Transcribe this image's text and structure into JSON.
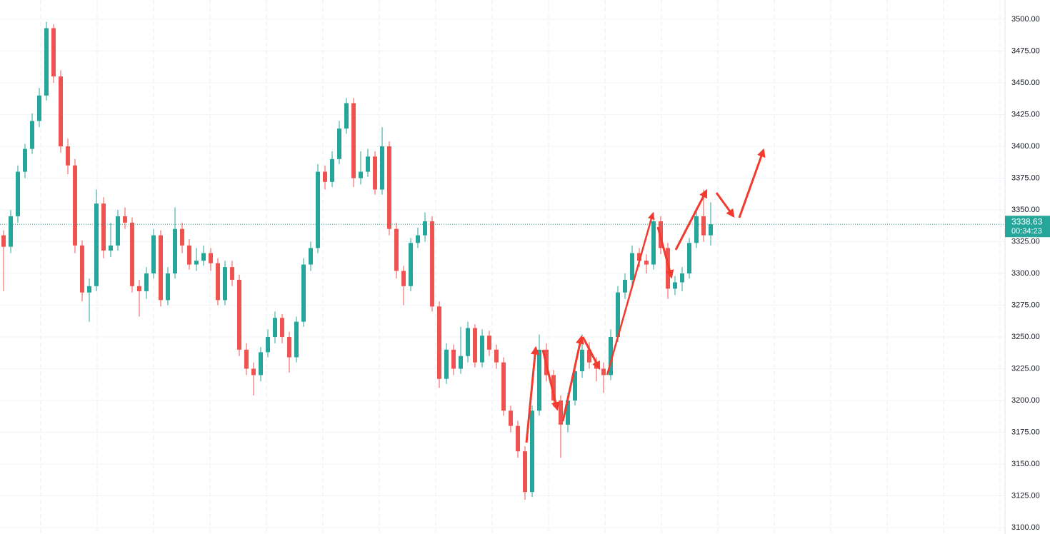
{
  "chart_data": {
    "type": "candlestick",
    "series": [
      {
        "up_color": "#26a69a",
        "down_color": "#ef5350",
        "open": [
          3330,
          3321,
          3345,
          3380,
          3398,
          3420,
          3440,
          3493,
          3455,
          3400,
          3385,
          3322,
          3285,
          3290,
          3355,
          3318,
          3322,
          3345,
          3340,
          3290,
          3286,
          3300,
          3330,
          3279,
          3300,
          3335,
          3322,
          3307,
          3310,
          3316,
          3308,
          3279,
          3305,
          3295,
          3240,
          3225,
          3220,
          3238,
          3250,
          3265,
          3250,
          3234,
          3262,
          3307,
          3320,
          3380,
          3372,
          3390,
          3414,
          3434,
          3375,
          3380,
          3392,
          3366,
          3400,
          3335,
          3302,
          3290,
          3324,
          3330,
          3341,
          3274,
          3217,
          3240,
          3225,
          3235,
          3257,
          3230,
          3251,
          3240,
          3230,
          3192,
          3180,
          3160,
          3128,
          3192,
          3240,
          3220,
          3200,
          3181,
          3200,
          3223,
          3240,
          3230,
          3225,
          3220,
          3250,
          3285,
          3295,
          3316,
          3310,
          3307,
          3341,
          3320,
          3288,
          3293,
          3300,
          3324,
          3345,
          3330
        ],
        "high": [
          3334,
          3350,
          3385,
          3402,
          3426,
          3446,
          3498,
          3496,
          3460,
          3406,
          3390,
          3326,
          3296,
          3366,
          3360,
          3340,
          3350,
          3352,
          3344,
          3295,
          3305,
          3335,
          3334,
          3305,
          3352,
          3340,
          3327,
          3320,
          3322,
          3320,
          3312,
          3310,
          3310,
          3299,
          3245,
          3230,
          3242,
          3256,
          3270,
          3268,
          3254,
          3266,
          3312,
          3325,
          3386,
          3385,
          3396,
          3420,
          3438,
          3438,
          3396,
          3398,
          3396,
          3415,
          3404,
          3340,
          3306,
          3328,
          3336,
          3348,
          3345,
          3278,
          3245,
          3244,
          3258,
          3262,
          3260,
          3256,
          3255,
          3244,
          3234,
          3196,
          3184,
          3164,
          3196,
          3252,
          3245,
          3224,
          3204,
          3206,
          3228,
          3252,
          3246,
          3234,
          3230,
          3256,
          3290,
          3300,
          3322,
          3320,
          3315,
          3348,
          3345,
          3324,
          3298,
          3305,
          3328,
          3350,
          3366,
          3356
        ],
        "low": [
          3286,
          3316,
          3340,
          3375,
          3394,
          3415,
          3436,
          3450,
          3395,
          3378,
          3316,
          3278,
          3262,
          3286,
          3312,
          3313,
          3318,
          3335,
          3285,
          3266,
          3280,
          3296,
          3274,
          3275,
          3296,
          3316,
          3303,
          3302,
          3306,
          3302,
          3275,
          3275,
          3290,
          3235,
          3220,
          3204,
          3215,
          3234,
          3245,
          3245,
          3222,
          3230,
          3258,
          3302,
          3316,
          3366,
          3368,
          3386,
          3410,
          3368,
          3370,
          3376,
          3362,
          3362,
          3330,
          3296,
          3275,
          3286,
          3320,
          3325,
          3270,
          3210,
          3213,
          3220,
          3221,
          3230,
          3226,
          3226,
          3235,
          3225,
          3188,
          3175,
          3155,
          3122,
          3124,
          3188,
          3215,
          3195,
          3155,
          3175,
          3196,
          3218,
          3225,
          3215,
          3206,
          3216,
          3246,
          3280,
          3290,
          3305,
          3300,
          3303,
          3315,
          3280,
          3283,
          3286,
          3296,
          3320,
          3325,
          3322
        ],
        "close": [
          3321,
          3345,
          3380,
          3398,
          3420,
          3440,
          3493,
          3455,
          3400,
          3385,
          3322,
          3285,
          3290,
          3355,
          3318,
          3322,
          3345,
          3340,
          3290,
          3286,
          3300,
          3330,
          3279,
          3300,
          3335,
          3322,
          3307,
          3310,
          3316,
          3308,
          3279,
          3305,
          3295,
          3240,
          3225,
          3220,
          3238,
          3250,
          3265,
          3250,
          3234,
          3262,
          3307,
          3320,
          3380,
          3372,
          3390,
          3414,
          3434,
          3375,
          3380,
          3392,
          3366,
          3400,
          3335,
          3302,
          3290,
          3324,
          3330,
          3341,
          3274,
          3217,
          3240,
          3225,
          3235,
          3257,
          3230,
          3251,
          3240,
          3230,
          3192,
          3180,
          3160,
          3128,
          3192,
          3240,
          3220,
          3200,
          3181,
          3200,
          3223,
          3240,
          3230,
          3225,
          3220,
          3250,
          3285,
          3295,
          3316,
          3310,
          3307,
          3341,
          3320,
          3288,
          3293,
          3300,
          3324,
          3345,
          3330,
          3338.63
        ]
      }
    ],
    "countdown": "00:34:23",
    "ylim": [
      3100,
      3500
    ],
    "yticks": [
      {
        "value": 3100,
        "label": "3100.00"
      },
      {
        "value": 3125,
        "label": "3125.00"
      },
      {
        "value": 3150,
        "label": "3150.00"
      },
      {
        "value": 3175,
        "label": "3175.00"
      },
      {
        "value": 3200,
        "label": "3200.00"
      },
      {
        "value": 3225,
        "label": "3225.00"
      },
      {
        "value": 3250,
        "label": "3250.00"
      },
      {
        "value": 3275,
        "label": "3275.00"
      },
      {
        "value": 3300,
        "label": "3300.00"
      },
      {
        "value": 3325,
        "label": "3325.00"
      },
      {
        "value": 3350,
        "label": "3350.00"
      },
      {
        "value": 3375,
        "label": "3375.00"
      },
      {
        "value": 3400,
        "label": "3400.00"
      },
      {
        "value": 3425,
        "label": "3425.00"
      },
      {
        "value": 3450,
        "label": "3450.00"
      },
      {
        "value": 3475,
        "label": "3475.00"
      },
      {
        "value": 3500,
        "label": "3500.00"
      }
    ],
    "grid": true
  }
}
